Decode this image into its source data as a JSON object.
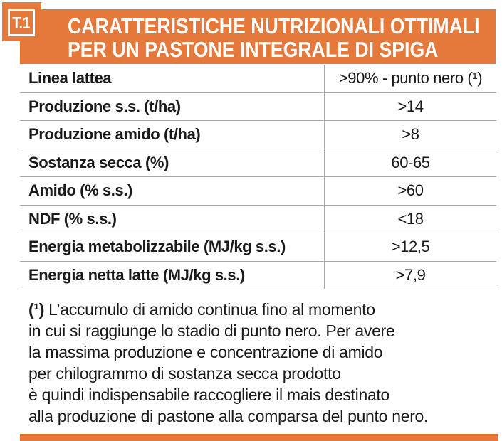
{
  "colors": {
    "accent_orange": "#e5793b",
    "grid_line": "#a8a8a8",
    "text": "#1a1a1a"
  },
  "badge": {
    "label": "T.1"
  },
  "header": {
    "title_line1": "CARATTERISTICHE NUTRIZIONALI OTTIMALI",
    "title_line2": "PER UN PASTONE INTEGRALE DI SPIGA"
  },
  "table": {
    "rows": [
      {
        "label": "Linea lattea",
        "value": ">90% - punto nero (¹)"
      },
      {
        "label": "Produzione s.s. (t/ha)",
        "value": ">14"
      },
      {
        "label": "Produzione amido (t/ha)",
        "value": ">8"
      },
      {
        "label": "Sostanza secca (%)",
        "value": "60-65"
      },
      {
        "label": "Amido (% s.s.)",
        "value": ">60"
      },
      {
        "label": "NDF (% s.s.)",
        "value": "<18"
      },
      {
        "label": "Energia metabolizzabile (MJ/kg s.s.)",
        "value": ">12,5"
      },
      {
        "label": "Energia netta latte (MJ/kg s.s.)",
        "value": ">7,9"
      }
    ]
  },
  "footnote": {
    "marker": "(¹)",
    "lines": [
      "L’accumulo di amido continua fino al momento",
      "in cui si raggiunge lo stadio di punto nero. Per avere",
      "la massima produzione e concentrazione di amido",
      "per chilogrammo di sostanza secca prodotto",
      "è quindi indispensabile raccogliere il mais destinato",
      "alla produzione di pastone alla comparsa del punto nero."
    ]
  }
}
